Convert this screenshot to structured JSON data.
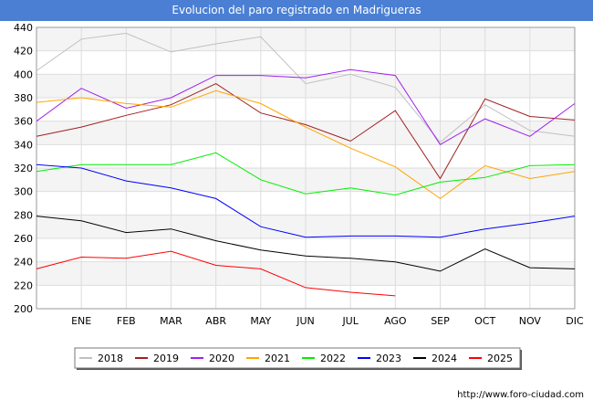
{
  "chart_data": {
    "type": "line",
    "title": "Evolucion del paro registrado en Madrigueras",
    "categories": [
      "",
      "ENE",
      "FEB",
      "MAR",
      "ABR",
      "MAY",
      "JUN",
      "JUL",
      "AGO",
      "SEP",
      "OCT",
      "NOV",
      "DIC"
    ],
    "ylim": [
      200,
      440
    ],
    "yticks": [
      200,
      220,
      240,
      260,
      280,
      300,
      320,
      340,
      360,
      380,
      400,
      420,
      440
    ],
    "grid": true,
    "legend_position": "bottom",
    "series": [
      {
        "name": "2018",
        "color": "#c0c0c0",
        "values": [
          403,
          430,
          435,
          419,
          426,
          432,
          392,
          400,
          389,
          342,
          374,
          352,
          347
        ]
      },
      {
        "name": "2019",
        "color": "#a02020",
        "values": [
          347,
          355,
          365,
          374,
          392,
          367,
          357,
          343,
          369,
          311,
          379,
          364,
          361
        ]
      },
      {
        "name": "2020",
        "color": "#a020f0",
        "values": [
          360,
          388,
          371,
          380,
          399,
          399,
          397,
          404,
          399,
          340,
          362,
          347,
          375
        ]
      },
      {
        "name": "2021",
        "color": "#ffa500",
        "values": [
          376,
          380,
          375,
          372,
          386,
          375,
          355,
          337,
          321,
          294,
          322,
          311,
          317
        ]
      },
      {
        "name": "2022",
        "color": "#00ee00",
        "values": [
          317,
          323,
          323,
          323,
          333,
          310,
          298,
          303,
          297,
          308,
          312,
          322,
          323
        ]
      },
      {
        "name": "2023",
        "color": "#0000ff",
        "values": [
          323,
          320,
          309,
          303,
          294,
          270,
          261,
          262,
          262,
          261,
          268,
          273,
          279
        ]
      },
      {
        "name": "2024",
        "color": "#000000",
        "values": [
          279,
          275,
          265,
          268,
          258,
          250,
          245,
          243,
          240,
          232,
          251,
          235,
          234
        ]
      },
      {
        "name": "2025",
        "color": "#ff0000",
        "values": [
          234,
          244,
          243,
          249,
          237,
          234,
          218,
          214,
          211,
          null,
          null,
          null,
          null
        ]
      }
    ]
  },
  "footer": "http://www.foro-ciudad.com"
}
